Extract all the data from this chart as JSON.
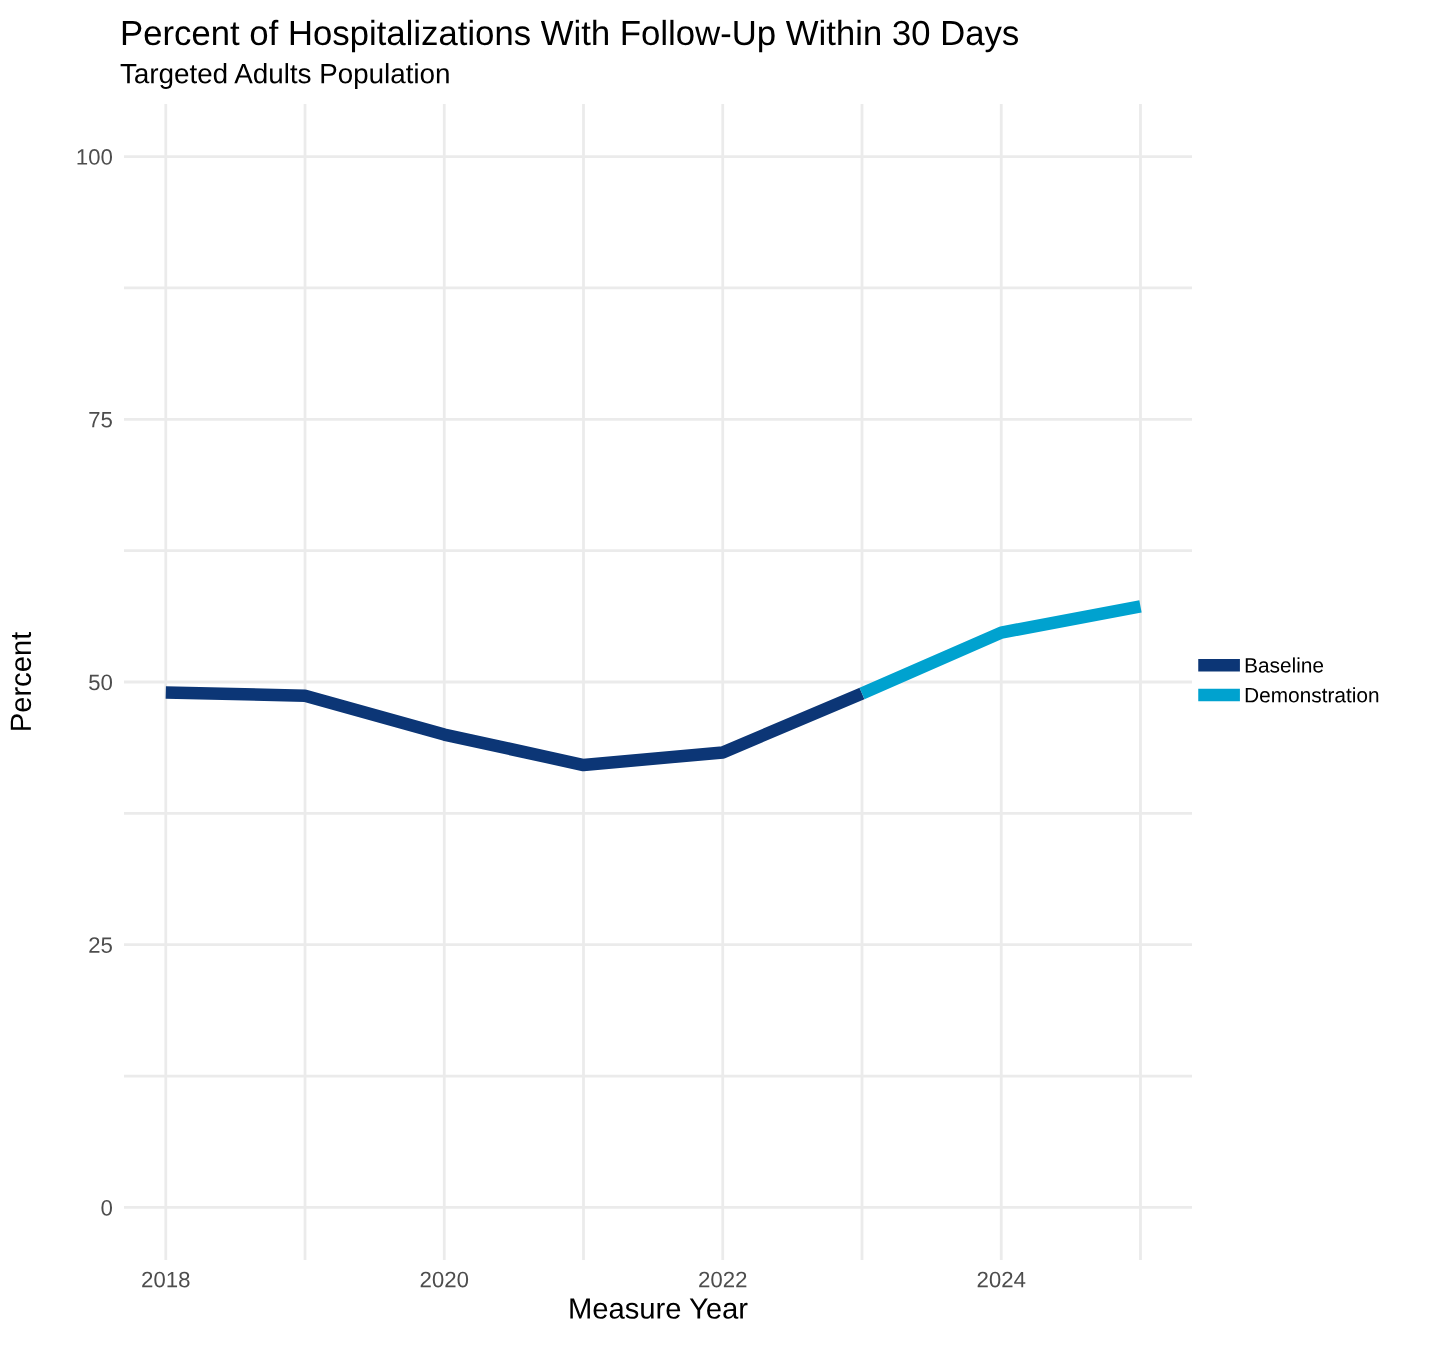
{
  "chart_data": {
    "type": "line",
    "title": "Percent of Hospitalizations With Follow-Up Within 30 Days",
    "subtitle": "Targeted Adults Population",
    "xlabel": "Measure Year",
    "ylabel": "Percent",
    "series": [
      {
        "name": "Baseline",
        "color": "#0c3676",
        "x": [
          2018,
          2019,
          2020,
          2021,
          2022,
          2023
        ],
        "values": [
          49.0,
          48.7,
          45.0,
          42.1,
          43.3,
          48.9
        ]
      },
      {
        "name": "Demonstration",
        "color": "#00a2cf",
        "x": [
          2023,
          2024,
          2025
        ],
        "values": [
          48.9,
          54.7,
          57.2
        ]
      }
    ],
    "xlim": [
      2017.7,
      2025.37
    ],
    "xticks": [
      2018,
      {
        "value": 2019,
        "label": null
      },
      2020,
      {
        "value": 2021,
        "label": null
      },
      2022,
      {
        "value": 2023,
        "label": null
      },
      2024,
      {
        "value": 2025,
        "label": null
      }
    ],
    "ylim": [
      -5,
      105
    ],
    "yticks": [
      0,
      {
        "value": 12.5,
        "label": null
      },
      25,
      {
        "value": 37.5,
        "label": null
      },
      50,
      {
        "value": 62.5,
        "label": null
      },
      75,
      {
        "value": 87.5,
        "label": null
      },
      100
    ],
    "grid": true,
    "legend": "right",
    "marker": "none",
    "line_style": "solid"
  }
}
